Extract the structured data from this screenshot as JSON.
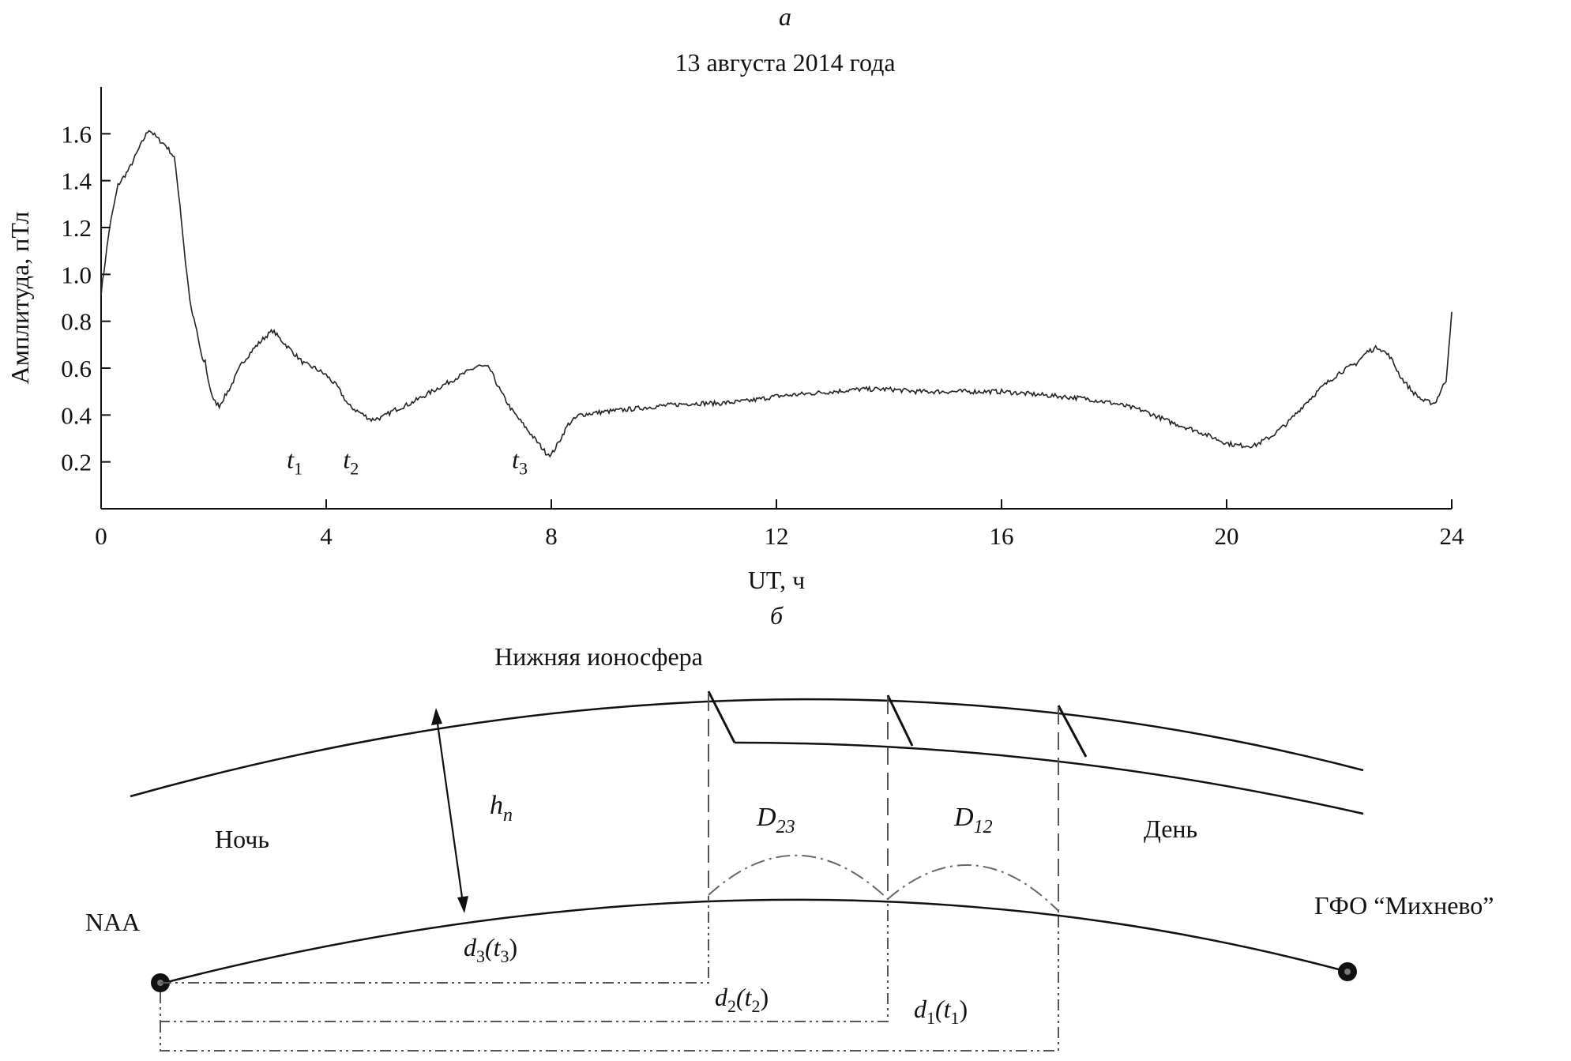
{
  "panel_a": {
    "label": "а",
    "title": "13 августа 2014 года",
    "ylabel": "Амплитуда, пТл",
    "xlabel": "UT, ч",
    "markers": [
      {
        "name": "t",
        "sub": "1",
        "x": 3.3,
        "y": 0.22
      },
      {
        "name": "t",
        "sub": "2",
        "x": 4.3,
        "y": 0.22
      },
      {
        "name": "t",
        "sub": "3",
        "x": 7.3,
        "y": 0.22
      }
    ]
  },
  "panel_b": {
    "label": "б",
    "ionosphere_label": "Нижняя ионосфера",
    "height_symbol": "h",
    "height_sub": "n",
    "night_label": "Ночь",
    "day_label": "День",
    "d23_symbol": "D",
    "d23_sub": "23",
    "d12_symbol": "D",
    "d12_sub": "12",
    "transmitter_label": "NAA",
    "receiver_label": "ГФО “Михнево”",
    "distances": [
      {
        "symbol": "d",
        "sub": "3",
        "arg": "(t",
        "arg_sub": "3",
        "close": ")"
      },
      {
        "symbol": "d",
        "sub": "2",
        "arg": "(t",
        "arg_sub": "2",
        "close": ")"
      },
      {
        "symbol": "d",
        "sub": "1",
        "arg": "(t",
        "arg_sub": "1",
        "close": ")"
      }
    ]
  },
  "chart_data": {
    "type": "line",
    "title": "13 августа 2014 года",
    "xlabel": "UT, ч",
    "ylabel": "Амплитуда, пТл",
    "xlim": [
      0,
      24
    ],
    "ylim": [
      0.0,
      1.8
    ],
    "xticks": [
      0,
      4,
      8,
      12,
      16,
      20,
      24
    ],
    "yticks": [
      0.2,
      0.4,
      0.6,
      0.8,
      1.0,
      1.2,
      1.4,
      1.6
    ],
    "grid": false,
    "series": [
      {
        "x": [
          0,
          0.15,
          0.3,
          0.5,
          0.7,
          0.85,
          1.0,
          1.15,
          1.3,
          1.4,
          1.5,
          1.6,
          1.7,
          1.8,
          1.85,
          1.9,
          2.0,
          2.1,
          2.2,
          2.3,
          2.5,
          2.7,
          2.9,
          3.05,
          3.2,
          3.4,
          3.6,
          3.8,
          4.0,
          4.2,
          4.4,
          4.6,
          4.8,
          5.0,
          5.2,
          5.5,
          5.8,
          6.1,
          6.4,
          6.7,
          6.9,
          7.1,
          7.3,
          7.5,
          7.7,
          7.9,
          8.0,
          8.1,
          8.3,
          8.5,
          8.8,
          9.2,
          9.6,
          10.0,
          10.5,
          11.0,
          11.5,
          12.0,
          12.5,
          13.0,
          13.5,
          14.0,
          14.5,
          15.0,
          15.5,
          16.0,
          16.5,
          17.0,
          17.5,
          18.0,
          18.5,
          19.0,
          19.5,
          20.0,
          20.2,
          20.5,
          20.8,
          21.1,
          21.4,
          21.7,
          22.0,
          22.3,
          22.5,
          22.7,
          22.9,
          23.1,
          23.3,
          23.5,
          23.7,
          23.9,
          24.0
        ],
        "y": [
          0.92,
          1.2,
          1.38,
          1.45,
          1.55,
          1.62,
          1.58,
          1.55,
          1.5,
          1.3,
          1.05,
          0.85,
          0.76,
          0.63,
          0.63,
          0.55,
          0.46,
          0.44,
          0.48,
          0.52,
          0.62,
          0.68,
          0.73,
          0.76,
          0.72,
          0.67,
          0.62,
          0.6,
          0.57,
          0.52,
          0.44,
          0.41,
          0.38,
          0.39,
          0.42,
          0.45,
          0.49,
          0.53,
          0.57,
          0.61,
          0.6,
          0.5,
          0.42,
          0.36,
          0.3,
          0.24,
          0.23,
          0.27,
          0.36,
          0.4,
          0.41,
          0.42,
          0.43,
          0.44,
          0.45,
          0.45,
          0.46,
          0.48,
          0.49,
          0.5,
          0.51,
          0.51,
          0.5,
          0.5,
          0.5,
          0.5,
          0.49,
          0.48,
          0.47,
          0.45,
          0.42,
          0.37,
          0.33,
          0.28,
          0.27,
          0.27,
          0.31,
          0.37,
          0.45,
          0.52,
          0.58,
          0.62,
          0.67,
          0.69,
          0.65,
          0.56,
          0.5,
          0.46,
          0.45,
          0.55,
          0.84
        ]
      }
    ]
  }
}
